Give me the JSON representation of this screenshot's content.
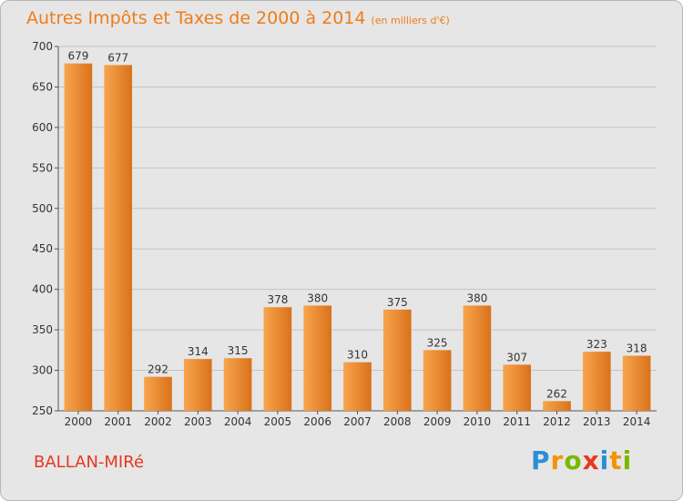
{
  "header": {
    "title": "Autres Impôts et Taxes de 2000 à 2014",
    "subtitle": "(en milliers d'€)"
  },
  "footer": {
    "commune": "BALLAN-MIRé",
    "brand": {
      "text": "Proxiti",
      "letters": [
        {
          "char": "P",
          "color": "#2b8fd6"
        },
        {
          "char": "r",
          "color": "#f29400"
        },
        {
          "char": "o",
          "color": "#7ab800"
        },
        {
          "char": "x",
          "color": "#e6391e"
        },
        {
          "char": "i",
          "color": "#2b8fd6"
        },
        {
          "char": "t",
          "color": "#f29400"
        },
        {
          "char": "i",
          "color": "#7ab800"
        }
      ]
    }
  },
  "colors": {
    "bar_light": "#f8a54e",
    "bar_dark": "#d9721a",
    "grid": "#c4c4c4",
    "title": "#f07c16"
  },
  "chart_data": {
    "type": "bar",
    "title": "Autres Impôts et Taxes de 2000 à 2014",
    "subtitle": "(en milliers d'€)",
    "categories": [
      "2000",
      "2001",
      "2002",
      "2003",
      "2004",
      "2005",
      "2006",
      "2007",
      "2008",
      "2009",
      "2010",
      "2011",
      "2012",
      "2013",
      "2014"
    ],
    "values": [
      679,
      677,
      292,
      314,
      315,
      378,
      380,
      310,
      375,
      325,
      380,
      307,
      262,
      323,
      318
    ],
    "ylim": [
      250,
      700
    ],
    "yticks": [
      250,
      300,
      350,
      400,
      450,
      500,
      550,
      600,
      650,
      700
    ],
    "grid": true,
    "xlabel": "",
    "ylabel": ""
  }
}
